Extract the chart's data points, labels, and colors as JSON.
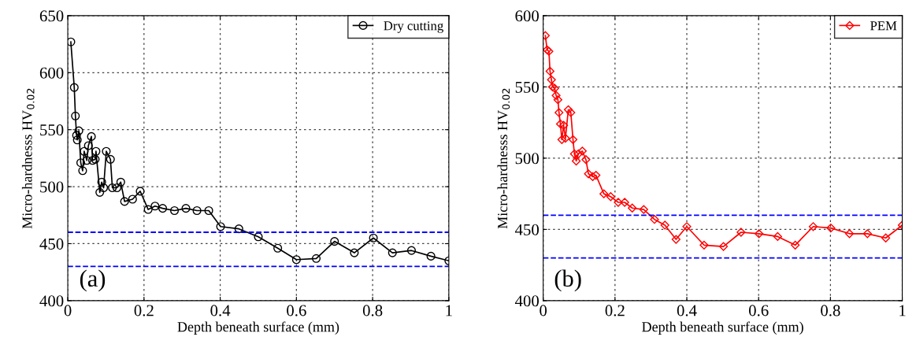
{
  "chart_data": [
    {
      "type": "line",
      "xlabel": "Depth beneath surface (mm)",
      "ylabel": "Micro-hardnesss HV$_{0.02}$",
      "annotations": [
        "(a)"
      ],
      "xlim": [
        0,
        1
      ],
      "xticks": [
        0,
        0.2,
        0.4,
        0.6,
        0.8,
        1
      ],
      "ylim": [
        400,
        650
      ],
      "yticks": [
        400,
        450,
        500,
        550,
        600,
        650
      ],
      "grid": true,
      "legend": "top right",
      "marker": "circle",
      "line_style": "solid",
      "ref_lines": [
        {
          "axis": "y",
          "value": 460,
          "color": "#0000ff",
          "line_style": "dashed"
        },
        {
          "axis": "y",
          "value": 430,
          "color": "#0000ff",
          "line_style": "dashed"
        }
      ],
      "series": [
        {
          "name": "Dry cutting",
          "color": "#000000",
          "x": [
            0.008,
            0.017,
            0.02,
            0.023,
            0.025,
            0.029,
            0.034,
            0.039,
            0.043,
            0.05,
            0.054,
            0.062,
            0.065,
            0.072,
            0.074,
            0.084,
            0.089,
            0.094,
            0.101,
            0.112,
            0.117,
            0.129,
            0.139,
            0.149,
            0.17,
            0.19,
            0.211,
            0.229,
            0.249,
            0.28,
            0.31,
            0.339,
            0.37,
            0.401,
            0.449,
            0.5,
            0.551,
            0.6,
            0.652,
            0.7,
            0.752,
            0.802,
            0.852,
            0.902,
            0.953,
            1.0
          ],
          "values": [
            627,
            587,
            562,
            545,
            541,
            549,
            521,
            514,
            531,
            523,
            536,
            544,
            523,
            524,
            531,
            495,
            504,
            499,
            531,
            524,
            499,
            499,
            504,
            487,
            489,
            496,
            480,
            483,
            481,
            479,
            481,
            479,
            479,
            465,
            463,
            456,
            446,
            436,
            437,
            452,
            442,
            455,
            442,
            444,
            439,
            435
          ]
        }
      ]
    },
    {
      "type": "line",
      "xlabel": "Depth beneath surface (mm)",
      "ylabel": "Micro-hardnesss HV$_{0.02}$",
      "annotations": [
        "(b)"
      ],
      "xlim": [
        0,
        1
      ],
      "xticks": [
        0,
        0.2,
        0.4,
        0.6,
        0.8,
        1
      ],
      "ylim": [
        400,
        600
      ],
      "yticks": [
        400,
        450,
        500,
        550,
        600
      ],
      "grid": true,
      "legend": "top right",
      "marker": "diamond",
      "line_style": "solid",
      "ref_lines": [
        {
          "axis": "y",
          "value": 460,
          "color": "#0000ff",
          "line_style": "dashed"
        },
        {
          "axis": "y",
          "value": 430,
          "color": "#0000ff",
          "line_style": "dashed"
        }
      ],
      "series": [
        {
          "name": "PEM",
          "color": "#ff0000",
          "x": [
            0.006,
            0.011,
            0.016,
            0.019,
            0.023,
            0.026,
            0.032,
            0.036,
            0.041,
            0.044,
            0.048,
            0.052,
            0.057,
            0.062,
            0.07,
            0.077,
            0.083,
            0.087,
            0.092,
            0.098,
            0.109,
            0.119,
            0.126,
            0.138,
            0.147,
            0.169,
            0.188,
            0.209,
            0.227,
            0.248,
            0.28,
            0.31,
            0.339,
            0.37,
            0.4,
            0.448,
            0.502,
            0.551,
            0.601,
            0.653,
            0.702,
            0.752,
            0.801,
            0.853,
            0.903,
            0.954,
            1.0
          ],
          "values": [
            586,
            576,
            575,
            561,
            555,
            550,
            549,
            544,
            541,
            532,
            524,
            513,
            523,
            514,
            534,
            532,
            513,
            503,
            498,
            503,
            505,
            499,
            489,
            487,
            488,
            475,
            473,
            469,
            469,
            465,
            464,
            457,
            453,
            443,
            452,
            439,
            438,
            448,
            447,
            445,
            439,
            452,
            451,
            447,
            447,
            444,
            453
          ]
        }
      ]
    }
  ]
}
